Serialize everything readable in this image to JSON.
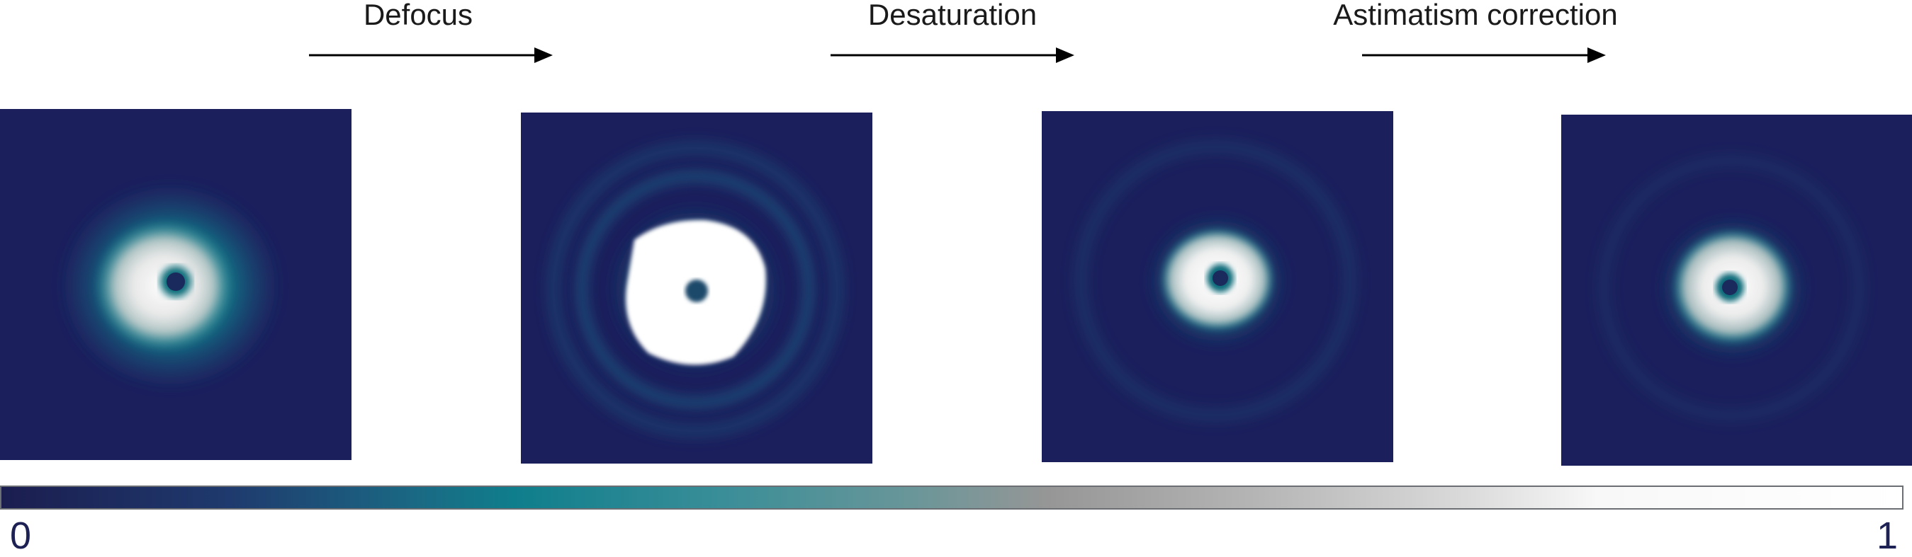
{
  "steps": [
    {
      "label": "Defocus"
    },
    {
      "label": "Desaturation"
    },
    {
      "label": "Astimatism correction"
    }
  ],
  "colorbar": {
    "min_label": "0",
    "max_label": "1"
  },
  "colors": {
    "background_navy": "#1b1f5c",
    "teal": "#0f7e8c",
    "gray": "#969696",
    "white": "#ffffff",
    "text": "#1a1a1a",
    "tick_text": "#1d2154"
  }
}
